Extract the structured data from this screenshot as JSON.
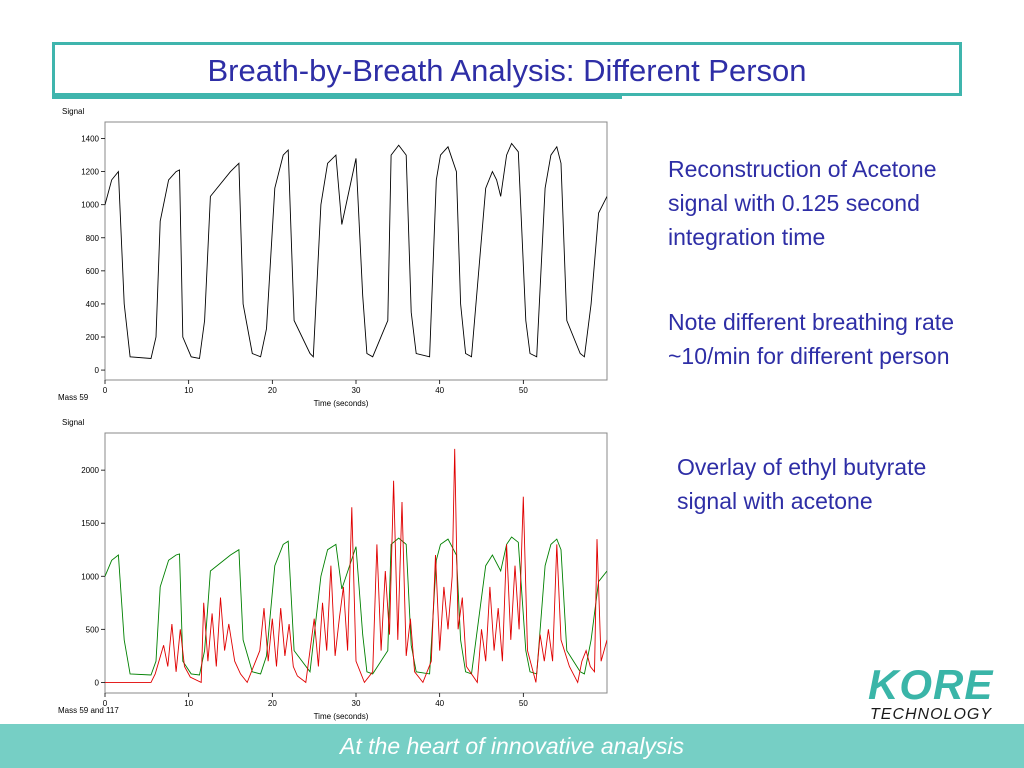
{
  "title": "Breath-by-Breath Analysis: Different Person",
  "footer": "At the heart of innovative analysis",
  "logo": {
    "brand": "KORE",
    "sub": "TECHNOLOGY"
  },
  "side_texts": {
    "p1": "Reconstruction of Acetone signal with 0.125 second integration time",
    "p2": "Note different breathing rate ~10/min for different person",
    "p3": "Overlay of ethyl butyrate signal with acetone"
  },
  "colors": {
    "accent": "#3fb5ad",
    "title": "#2e2ea6",
    "acetone_top": "#000000",
    "acetone_overlay": "#008000",
    "ethyl_butyrate": "#e00000"
  },
  "chart_data": [
    {
      "type": "line",
      "ylabel": "Signal",
      "xlabel": "Time (seconds)",
      "corner_label": "Mass 59",
      "xlim": [
        0,
        60
      ],
      "ylim": [
        -60,
        1500
      ],
      "xticks": [
        0,
        10,
        20,
        30,
        40,
        50
      ],
      "yticks": [
        0,
        200,
        400,
        600,
        800,
        1000,
        1200,
        1400
      ],
      "series": [
        {
          "color": "#000000",
          "x": [
            0,
            0.8,
            1.6,
            2.3,
            3.0,
            5.5,
            6.1,
            6.6,
            7.6,
            8.5,
            8.9,
            9.3,
            10.3,
            11.3,
            11.9,
            12.6,
            15.0,
            16.0,
            16.5,
            17.6,
            18.6,
            19.3,
            20.3,
            21.3,
            21.9,
            22.6,
            24.5,
            24.9,
            25.8,
            26.6,
            27.6,
            28.3,
            30.0,
            30.8,
            31.3,
            32.0,
            33.8,
            34.2,
            35.1,
            36.0,
            36.6,
            37.2,
            38.8,
            39.6,
            40.1,
            41.0,
            42.0,
            42.5,
            43.1,
            43.8,
            45.5,
            46.3,
            46.8,
            47.3,
            48.0,
            48.6,
            49.4,
            50.3,
            50.8,
            51.6,
            52.6,
            53.3,
            54.0,
            54.5,
            55.2,
            56.8,
            57.3,
            58.1,
            59.0,
            60.0
          ],
          "y": [
            1000,
            1150,
            1200,
            400,
            80,
            70,
            200,
            900,
            1150,
            1200,
            1210,
            200,
            80,
            70,
            300,
            1050,
            1200,
            1250,
            400,
            100,
            80,
            250,
            1100,
            1300,
            1330,
            300,
            100,
            80,
            1000,
            1250,
            1300,
            880,
            1280,
            450,
            100,
            80,
            300,
            1300,
            1360,
            1300,
            350,
            100,
            80,
            1150,
            1300,
            1350,
            1200,
            400,
            100,
            80,
            1100,
            1200,
            1150,
            1050,
            1300,
            1370,
            1320,
            300,
            100,
            80,
            1100,
            1300,
            1350,
            1250,
            300,
            100,
            80,
            400,
            950,
            1050
          ]
        }
      ]
    },
    {
      "type": "line",
      "ylabel": "Signal",
      "xlabel": "Time (seconds)",
      "corner_label": "Mass 59 and 117",
      "xlim": [
        0,
        60
      ],
      "ylim": [
        -100,
        2350
      ],
      "xticks": [
        0,
        10,
        20,
        30,
        40,
        50
      ],
      "yticks": [
        0,
        500,
        1000,
        1500,
        2000
      ],
      "series": [
        {
          "color": "#008000",
          "x": [
            0,
            0.8,
            1.6,
            2.3,
            3.0,
            5.5,
            6.1,
            6.6,
            7.6,
            8.5,
            8.9,
            9.3,
            10.3,
            11.3,
            11.9,
            12.6,
            15.0,
            16.0,
            16.5,
            17.6,
            18.6,
            19.3,
            20.3,
            21.3,
            21.9,
            22.6,
            24.5,
            25.8,
            26.6,
            27.6,
            28.3,
            30.0,
            30.8,
            31.3,
            32.0,
            33.8,
            34.2,
            35.1,
            36.0,
            36.6,
            37.2,
            38.8,
            39.6,
            40.1,
            41.0,
            42.0,
            42.5,
            43.1,
            43.8,
            45.5,
            46.3,
            47.3,
            48.0,
            48.6,
            49.4,
            50.3,
            50.8,
            51.6,
            52.6,
            53.3,
            54.0,
            54.5,
            55.2,
            56.8,
            57.3,
            58.1,
            59.0,
            60.0
          ],
          "y": [
            1000,
            1150,
            1200,
            400,
            80,
            70,
            200,
            900,
            1150,
            1200,
            1210,
            200,
            80,
            70,
            300,
            1050,
            1200,
            1250,
            400,
            100,
            80,
            250,
            1100,
            1300,
            1330,
            300,
            100,
            1000,
            1250,
            1300,
            880,
            1280,
            450,
            100,
            80,
            300,
            1300,
            1360,
            1300,
            350,
            100,
            80,
            1150,
            1300,
            1350,
            1200,
            400,
            100,
            80,
            1100,
            1200,
            1050,
            1300,
            1370,
            1320,
            300,
            100,
            80,
            1100,
            1300,
            1350,
            1250,
            300,
            100,
            80,
            400,
            950,
            1050
          ]
        },
        {
          "color": "#e00000",
          "x": [
            0,
            5.5,
            6.0,
            7.0,
            7.5,
            8.0,
            8.5,
            9.0,
            9.5,
            10.2,
            11.5,
            11.8,
            12.3,
            12.8,
            13.3,
            13.8,
            14.3,
            14.8,
            15.5,
            16.2,
            17.0,
            18.5,
            19.0,
            19.5,
            20.0,
            20.5,
            21.0,
            21.5,
            22.0,
            22.5,
            23.0,
            24.0,
            25.0,
            25.5,
            26.0,
            26.5,
            27.0,
            27.5,
            28.0,
            28.5,
            29.0,
            29.5,
            30.0,
            31.0,
            32.0,
            32.5,
            33.0,
            33.5,
            34.0,
            34.5,
            35.0,
            35.5,
            36.0,
            36.5,
            37.0,
            38.0,
            39.0,
            39.5,
            40.0,
            40.5,
            41.0,
            41.5,
            41.8,
            42.2,
            42.7,
            43.2,
            44.5,
            45.0,
            45.5,
            46.0,
            46.5,
            47.0,
            47.5,
            48.0,
            48.5,
            49.0,
            49.5,
            50.0,
            50.5,
            51.5,
            52.0,
            52.5,
            53.0,
            53.5,
            54.0,
            54.5,
            55.5,
            56.5,
            57.0,
            57.5,
            58.0,
            58.5,
            58.8,
            59.3,
            60.0
          ],
          "y": [
            0,
            0,
            80,
            350,
            150,
            550,
            100,
            500,
            150,
            50,
            0,
            750,
            200,
            650,
            150,
            800,
            300,
            550,
            200,
            80,
            0,
            300,
            700,
            200,
            600,
            150,
            700,
            250,
            550,
            150,
            60,
            0,
            600,
            150,
            750,
            300,
            1100,
            250,
            600,
            900,
            300,
            1650,
            200,
            0,
            100,
            1300,
            300,
            1050,
            450,
            1900,
            400,
            1700,
            250,
            600,
            100,
            0,
            200,
            1200,
            300,
            900,
            500,
            1000,
            2200,
            500,
            800,
            150,
            0,
            500,
            200,
            900,
            300,
            700,
            200,
            1300,
            400,
            1100,
            500,
            1750,
            300,
            0,
            450,
            200,
            500,
            200,
            1300,
            400,
            150,
            0,
            200,
            300,
            150,
            100,
            1350,
            200,
            400
          ]
        }
      ]
    }
  ]
}
